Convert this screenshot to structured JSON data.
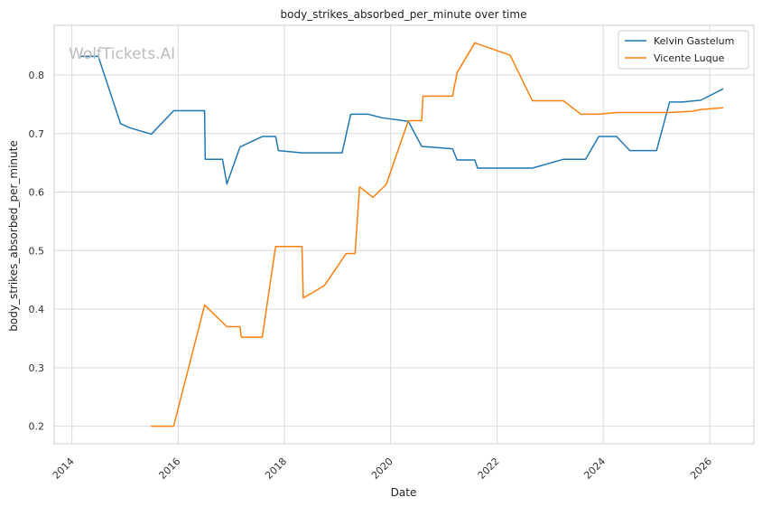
{
  "watermark": "WolfTickets.AI",
  "chart_data": {
    "type": "line",
    "title": "body_strikes_absorbed_per_minute over time",
    "xlabel": "Date",
    "ylabel": "body_strikes_absorbed_per_minute",
    "x_type": "date",
    "xlim": [
      "2013-09-01",
      "2026-11-01"
    ],
    "ylim": [
      0.17,
      0.885
    ],
    "xticks": [
      "2014",
      "2016",
      "2018",
      "2020",
      "2022",
      "2024",
      "2026"
    ],
    "yticks": [
      0.2,
      0.3,
      0.4,
      0.5,
      0.6,
      0.7,
      0.8
    ],
    "grid": true,
    "legend_position": "top-right",
    "series": [
      {
        "name": "Kelvin Gastelum",
        "color": "#1f77b4",
        "points": [
          [
            "2014-03-01",
            0.832
          ],
          [
            "2014-07-01",
            0.832
          ],
          [
            "2014-12-01",
            0.717
          ],
          [
            "2015-02-01",
            0.71
          ],
          [
            "2015-07-01",
            0.699
          ],
          [
            "2015-12-01",
            0.739
          ],
          [
            "2016-07-01",
            0.739
          ],
          [
            "2016-07-05",
            0.656
          ],
          [
            "2016-11-01",
            0.656
          ],
          [
            "2016-12-01",
            0.614
          ],
          [
            "2017-03-01",
            0.677
          ],
          [
            "2017-08-01",
            0.695
          ],
          [
            "2017-11-01",
            0.695
          ],
          [
            "2017-11-20",
            0.671
          ],
          [
            "2018-05-01",
            0.667
          ],
          [
            "2019-02-01",
            0.667
          ],
          [
            "2019-04-01",
            0.733
          ],
          [
            "2019-08-01",
            0.733
          ],
          [
            "2019-11-01",
            0.727
          ],
          [
            "2020-05-01",
            0.721
          ],
          [
            "2020-08-01",
            0.678
          ],
          [
            "2021-03-01",
            0.674
          ],
          [
            "2021-04-01",
            0.655
          ],
          [
            "2021-08-01",
            0.655
          ],
          [
            "2021-08-20",
            0.641
          ],
          [
            "2022-09-01",
            0.641
          ],
          [
            "2023-04-01",
            0.656
          ],
          [
            "2023-09-01",
            0.656
          ],
          [
            "2023-12-01",
            0.695
          ],
          [
            "2024-04-01",
            0.695
          ],
          [
            "2024-07-01",
            0.671
          ],
          [
            "2025-01-01",
            0.671
          ],
          [
            "2025-04-01",
            0.754
          ],
          [
            "2025-07-01",
            0.754
          ],
          [
            "2025-11-01",
            0.757
          ],
          [
            "2026-04-01",
            0.776
          ]
        ]
      },
      {
        "name": "Vicente Luque",
        "color": "#ff7f0e",
        "points": [
          [
            "2015-07-01",
            0.2
          ],
          [
            "2015-12-01",
            0.2
          ],
          [
            "2016-07-01",
            0.407
          ],
          [
            "2016-12-01",
            0.37
          ],
          [
            "2017-03-01",
            0.37
          ],
          [
            "2017-03-10",
            0.352
          ],
          [
            "2017-08-01",
            0.352
          ],
          [
            "2017-11-01",
            0.507
          ],
          [
            "2018-05-01",
            0.507
          ],
          [
            "2018-05-10",
            0.419
          ],
          [
            "2018-10-01",
            0.44
          ],
          [
            "2019-03-01",
            0.495
          ],
          [
            "2019-05-01",
            0.495
          ],
          [
            "2019-06-01",
            0.609
          ],
          [
            "2019-09-01",
            0.591
          ],
          [
            "2019-12-01",
            0.613
          ],
          [
            "2020-05-01",
            0.722
          ],
          [
            "2020-08-01",
            0.722
          ],
          [
            "2020-08-10",
            0.764
          ],
          [
            "2021-03-01",
            0.764
          ],
          [
            "2021-04-01",
            0.804
          ],
          [
            "2021-08-01",
            0.855
          ],
          [
            "2022-04-01",
            0.834
          ],
          [
            "2022-09-01",
            0.756
          ],
          [
            "2023-04-01",
            0.756
          ],
          [
            "2023-08-01",
            0.733
          ],
          [
            "2023-12-01",
            0.733
          ],
          [
            "2024-04-01",
            0.736
          ],
          [
            "2025-04-01",
            0.736
          ],
          [
            "2025-09-01",
            0.738
          ],
          [
            "2025-11-01",
            0.741
          ],
          [
            "2026-04-01",
            0.744
          ]
        ]
      }
    ]
  }
}
